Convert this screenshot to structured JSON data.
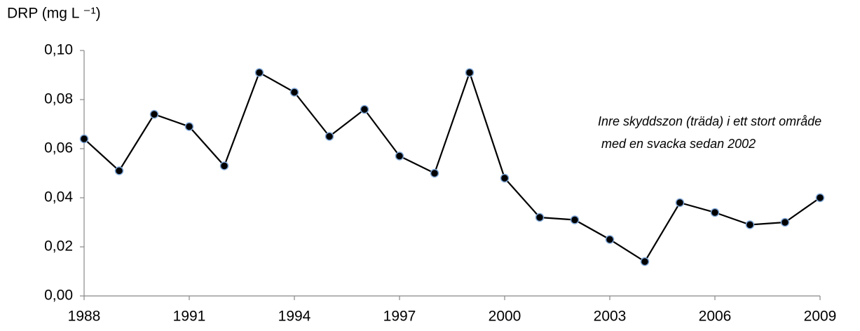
{
  "chart_data": {
    "type": "line",
    "ylabel": "DRP (mg L ⁻¹)",
    "annotations": [
      "Inre skyddszon (träda) i ett stort område",
      "med en svacka sedan 2002"
    ],
    "x": [
      1988,
      1989,
      1990,
      1991,
      1992,
      1993,
      1994,
      1995,
      1996,
      1997,
      1998,
      1999,
      2000,
      2001,
      2002,
      2003,
      2004,
      2005,
      2006,
      2007,
      2008,
      2009
    ],
    "series": [
      {
        "color": "#000000",
        "marker_fill": "#000000",
        "marker_edge": "#7fa7d8",
        "values": [
          0.064,
          0.051,
          0.074,
          0.069,
          0.053,
          0.091,
          0.083,
          0.065,
          0.076,
          0.057,
          0.05,
          0.091,
          0.048,
          0.032,
          0.031,
          0.023,
          0.014,
          0.038,
          0.034,
          0.029,
          0.03,
          0.04
        ]
      }
    ],
    "xlim": [
      1988,
      2009
    ],
    "xticks": [
      1988,
      1991,
      1994,
      1997,
      2000,
      2003,
      2006,
      2009
    ],
    "ylim": [
      0,
      0.1
    ],
    "yticks": [
      {
        "value": 0,
        "label": "0,00"
      },
      {
        "value": 0.02,
        "label": "0,02"
      },
      {
        "value": 0.04,
        "label": "0,04"
      },
      {
        "value": 0.06,
        "label": "0,06"
      },
      {
        "value": 0.08,
        "label": "0,08"
      },
      {
        "value": 0.1,
        "label": "0,10"
      }
    ],
    "grid": false
  }
}
